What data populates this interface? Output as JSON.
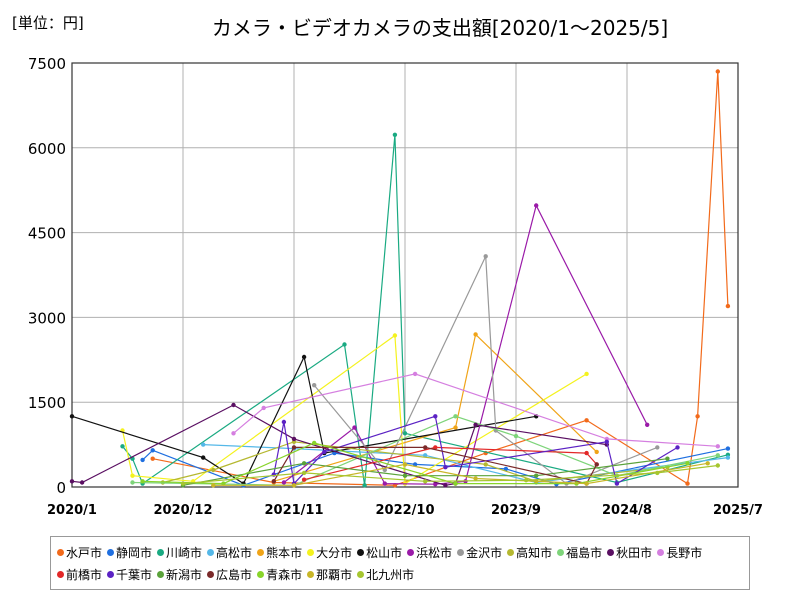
{
  "header": {
    "unit": "[単位：円]",
    "title": "カメラ・ビデオカメラの支出額[2020/1〜2025/5]"
  },
  "chart_data": {
    "type": "line",
    "title": "カメラ・ビデオカメラの支出額[2020/1〜2025/5]",
    "unit_label": "[単位：円]",
    "xlabel": "",
    "ylabel": "",
    "ylim": [
      0,
      7500
    ],
    "xlim": [
      0,
      66
    ],
    "grid": true,
    "legend_position": "bottom",
    "x_ticks": [
      {
        "label": "2020/1",
        "pos": 0
      },
      {
        "label": "2020/12",
        "pos": 11
      },
      {
        "label": "2021/11",
        "pos": 22
      },
      {
        "label": "2022/10",
        "pos": 33
      },
      {
        "label": "2023/9",
        "pos": 44
      },
      {
        "label": "2024/8",
        "pos": 55
      },
      {
        "label": "2025/7",
        "pos": 66
      }
    ],
    "y_ticks": [
      0,
      1500,
      3000,
      4500,
      6000,
      7500
    ],
    "series": [
      {
        "name": "水戸市",
        "color": "#f26a1b",
        "points": [
          [
            8,
            500
          ],
          [
            20,
            80
          ],
          [
            32,
            30
          ],
          [
            41,
            600
          ],
          [
            51,
            1180
          ],
          [
            61,
            60
          ],
          [
            62,
            1250
          ],
          [
            64,
            7350
          ],
          [
            65,
            3200
          ]
        ]
      },
      {
        "name": "静岡市",
        "color": "#1f6fe0",
        "points": [
          [
            7,
            480
          ],
          [
            8,
            650
          ],
          [
            17,
            30
          ],
          [
            26,
            600
          ],
          [
            34,
            400
          ],
          [
            43,
            320
          ],
          [
            48,
            50
          ],
          [
            65,
            680
          ]
        ]
      },
      {
        "name": "川崎市",
        "color": "#1aaa82",
        "points": [
          [
            5,
            720
          ],
          [
            6,
            500
          ],
          [
            7,
            60
          ],
          [
            27,
            2520
          ],
          [
            29,
            30
          ],
          [
            32,
            6230
          ],
          [
            33,
            950
          ],
          [
            54,
            80
          ],
          [
            65,
            570
          ]
        ]
      },
      {
        "name": "高松市",
        "color": "#55b8e8",
        "points": [
          [
            13,
            750
          ],
          [
            22,
            680
          ],
          [
            35,
            560
          ],
          [
            46,
            80
          ],
          [
            65,
            520
          ]
        ]
      },
      {
        "name": "熊本市",
        "color": "#f0a418",
        "points": [
          [
            20,
            100
          ],
          [
            38,
            1050
          ],
          [
            40,
            2700
          ],
          [
            52,
            620
          ]
        ]
      },
      {
        "name": "大分市",
        "color": "#f4f21e",
        "points": [
          [
            5,
            1000
          ],
          [
            6,
            200
          ],
          [
            12,
            100
          ],
          [
            32,
            2680
          ],
          [
            33,
            60
          ],
          [
            51,
            2000
          ]
        ]
      },
      {
        "name": "松山市",
        "color": "#111111",
        "points": [
          [
            0,
            1250
          ],
          [
            13,
            520
          ],
          [
            17,
            60
          ],
          [
            23,
            2300
          ],
          [
            25,
            600
          ],
          [
            46,
            1250
          ]
        ]
      },
      {
        "name": "浜松市",
        "color": "#9a1aa8",
        "points": [
          [
            21,
            80
          ],
          [
            28,
            1050
          ],
          [
            31,
            60
          ],
          [
            36,
            50
          ],
          [
            39,
            100
          ],
          [
            46,
            4980
          ],
          [
            57,
            1100
          ]
        ]
      },
      {
        "name": "金沢市",
        "color": "#999999",
        "points": [
          [
            24,
            1800
          ],
          [
            31,
            300
          ],
          [
            41,
            4080
          ],
          [
            42,
            1000
          ],
          [
            49,
            60
          ],
          [
            58,
            700
          ]
        ]
      },
      {
        "name": "高知市",
        "color": "#b5b830",
        "points": [
          [
            9,
            80
          ],
          [
            14,
            300
          ],
          [
            22,
            800
          ],
          [
            41,
            400
          ],
          [
            46,
            100
          ],
          [
            59,
            350
          ]
        ]
      },
      {
        "name": "福島市",
        "color": "#7ed47a",
        "points": [
          [
            6,
            80
          ],
          [
            22,
            30
          ],
          [
            38,
            1250
          ],
          [
            44,
            900
          ],
          [
            54,
            200
          ],
          [
            64,
            560
          ]
        ]
      },
      {
        "name": "秋田市",
        "color": "#5a0f62",
        "points": [
          [
            0,
            100
          ],
          [
            1,
            80
          ],
          [
            16,
            1450
          ],
          [
            22,
            850
          ],
          [
            37,
            30
          ],
          [
            38,
            60
          ],
          [
            40,
            1100
          ],
          [
            53,
            750
          ]
        ]
      },
      {
        "name": "長野市",
        "color": "#d57fe0",
        "points": [
          [
            16,
            950
          ],
          [
            19,
            1400
          ],
          [
            34,
            2000
          ],
          [
            53,
            850
          ],
          [
            64,
            720
          ]
        ]
      },
      {
        "name": "前橋市",
        "color": "#e22828",
        "points": [
          [
            23,
            130
          ],
          [
            36,
            700
          ],
          [
            51,
            600
          ],
          [
            52,
            400
          ]
        ]
      },
      {
        "name": "千葉市",
        "color": "#5b22c4",
        "points": [
          [
            20,
            220
          ],
          [
            21,
            1150
          ],
          [
            22,
            60
          ],
          [
            25,
            620
          ],
          [
            36,
            1250
          ],
          [
            37,
            350
          ],
          [
            53,
            800
          ],
          [
            54,
            60
          ],
          [
            60,
            700
          ]
        ]
      },
      {
        "name": "新潟市",
        "color": "#5aa23a",
        "points": [
          [
            11,
            30
          ],
          [
            23,
            420
          ],
          [
            33,
            200
          ],
          [
            46,
            200
          ],
          [
            59,
            500
          ]
        ]
      },
      {
        "name": "広島市",
        "color": "#7a2a2a",
        "points": [
          [
            20,
            100
          ],
          [
            22,
            700
          ],
          [
            35,
            700
          ],
          [
            51,
            60
          ],
          [
            52,
            400
          ]
        ]
      },
      {
        "name": "青森市",
        "color": "#88d42a",
        "points": [
          [
            7,
            100
          ],
          [
            15,
            60
          ],
          [
            24,
            780
          ],
          [
            38,
            60
          ],
          [
            50,
            60
          ],
          [
            61,
            420
          ]
        ]
      },
      {
        "name": "那覇市",
        "color": "#c8b628",
        "points": [
          [
            14,
            30
          ],
          [
            22,
            30
          ],
          [
            33,
            400
          ],
          [
            40,
            150
          ],
          [
            51,
            60
          ],
          [
            63,
            420
          ]
        ]
      },
      {
        "name": "北九州市",
        "color": "#a6c630",
        "points": [
          [
            11,
            60
          ],
          [
            23,
            250
          ],
          [
            35,
            100
          ],
          [
            45,
            120
          ],
          [
            58,
            250
          ],
          [
            64,
            380
          ]
        ]
      }
    ]
  }
}
